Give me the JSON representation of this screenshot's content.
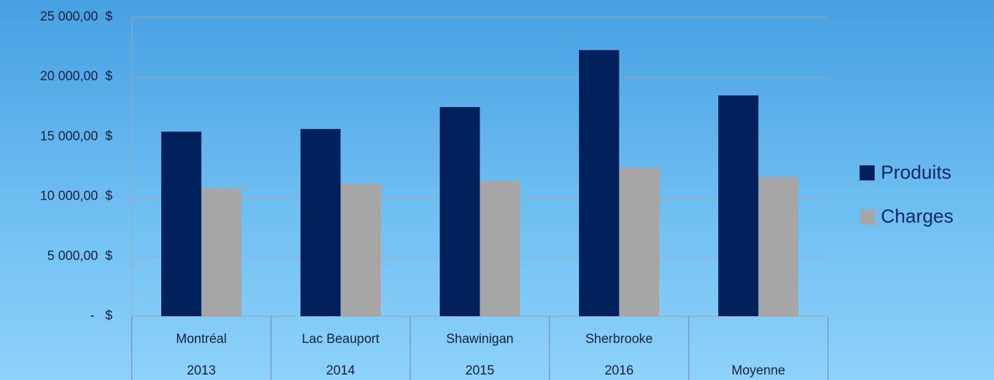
{
  "chart_data": {
    "type": "bar",
    "categories": [
      "Montréal",
      "Lac Beauport",
      "Shawinigan",
      "Sherbrooke",
      null
    ],
    "category_groups": [
      "2013",
      "2014",
      "2015",
      "2016",
      "Moyenne"
    ],
    "series": [
      {
        "name": "Produits",
        "color": "#00215c",
        "values": [
          15430,
          15650,
          17490,
          22250,
          18460
        ]
      },
      {
        "name": "Charges",
        "color": "#a6a6a6",
        "values": [
          10720,
          11070,
          11350,
          12500,
          11640
        ]
      }
    ],
    "ylim": [
      0,
      25000
    ],
    "yticks": [
      {
        "value": 0,
        "label": "-   $"
      },
      {
        "value": 5000,
        "label": "5 000,00  $"
      },
      {
        "value": 10000,
        "label": "10 000,00  $"
      },
      {
        "value": 15000,
        "label": "15 000,00  $"
      },
      {
        "value": 20000,
        "label": "20 000,00  $"
      },
      {
        "value": 25000,
        "label": "25 000,00  $"
      }
    ],
    "grid": true,
    "legend": "right"
  }
}
